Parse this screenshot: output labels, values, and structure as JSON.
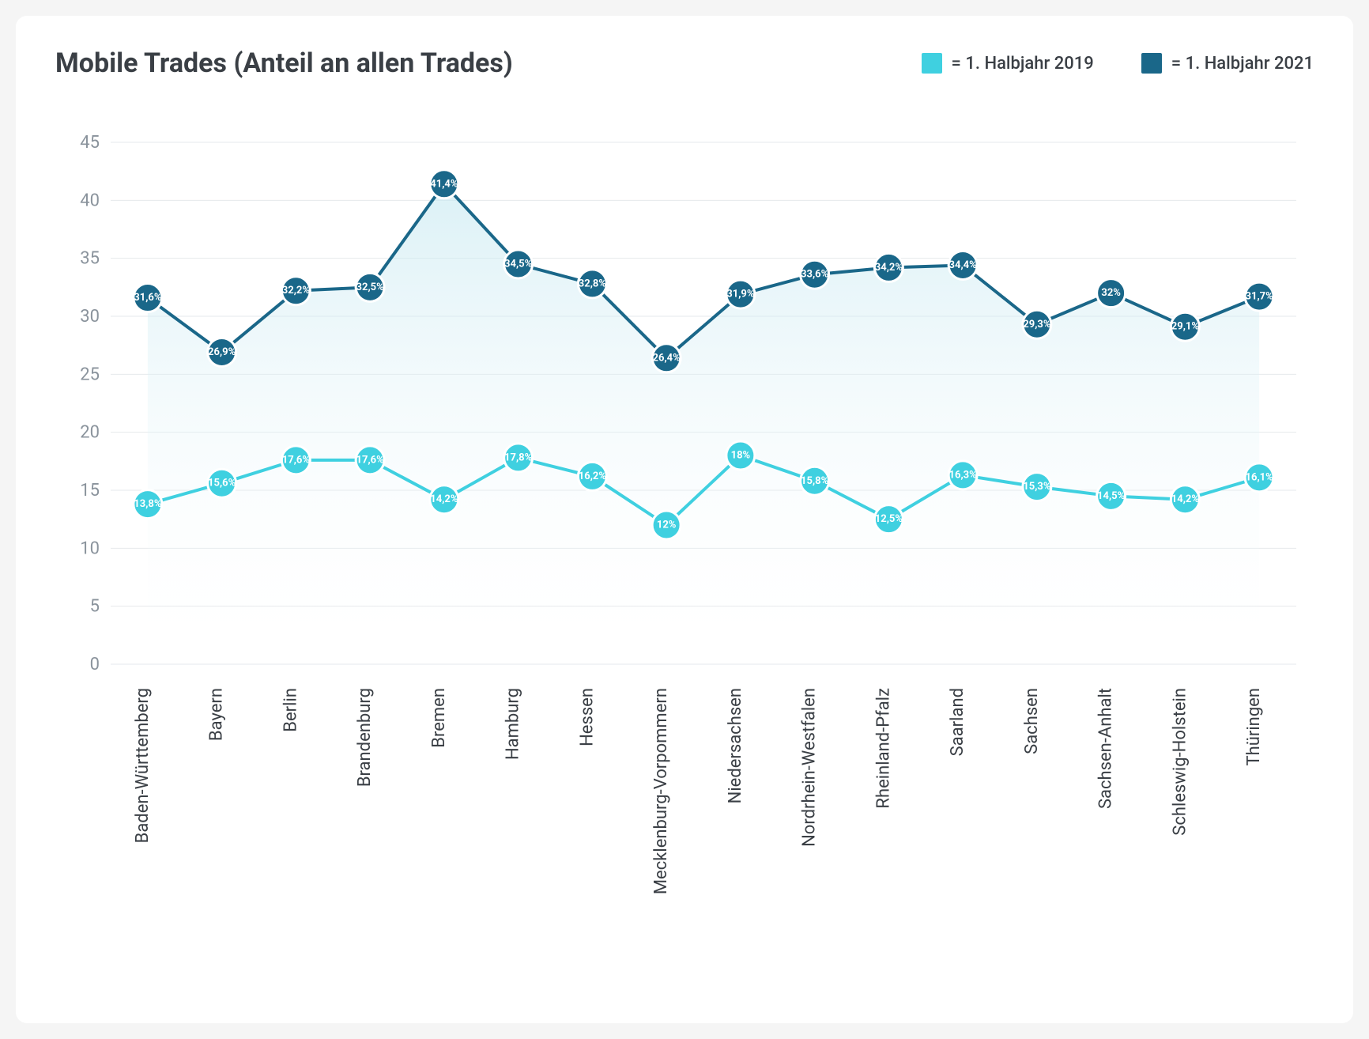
{
  "title": "Mobile Trades (Anteil an allen Trades)",
  "legend": [
    {
      "color": "#3fd0e0",
      "label": "= 1. Halbjahr 2019"
    },
    {
      "color": "#1a6789",
      "label": "= 1. Halbjahr 2021"
    }
  ],
  "chart": {
    "type": "line",
    "background_color": "#ffffff",
    "grid_color": "#e6e9ec",
    "ylim": [
      0,
      45
    ],
    "yticks": [
      0,
      5,
      10,
      15,
      20,
      25,
      30,
      35,
      40,
      45
    ],
    "ytick_color": "#8a939c",
    "ytick_fontsize": 22,
    "xtick_color": "#3a3f45",
    "xtick_fontsize": 22,
    "line_width": 4,
    "marker_radius": 18,
    "marker_stroke": "#ffffff",
    "marker_stroke_width": 3,
    "label_fontsize": 13,
    "label_color": "#ffffff",
    "area_fill_top": "#c3e7f0",
    "area_fill_bottom": "#ffffff",
    "area_opacity": 0.6,
    "categories": [
      "Baden-Württemberg",
      "Bayern",
      "Berlin",
      "Brandenburg",
      "Bremen",
      "Hamburg",
      "Hessen",
      "Mecklenburg-Vorpommern",
      "Niedersachsen",
      "Nordrhein-Westfalen",
      "Rheinland-Pfalz",
      "Saarland",
      "Sachsen",
      "Sachsen-Anhalt",
      "Schleswig-Holstein",
      "Thüringen"
    ],
    "series": [
      {
        "name": "1. Halbjahr 2021",
        "color": "#1a6789",
        "has_area": true,
        "values": [
          31.6,
          26.9,
          32.2,
          32.5,
          41.4,
          34.5,
          32.8,
          26.4,
          31.9,
          33.6,
          34.2,
          34.4,
          29.3,
          32.0,
          29.1,
          31.7
        ],
        "labels": [
          "31,6%",
          "26,9%",
          "32,2%",
          "32,5%",
          "41,4%",
          "34,5%",
          "32,8%",
          "26,4%",
          "31,9%",
          "33,6%",
          "34,2%",
          "34,4%",
          "29,3%",
          "32%",
          "29,1%",
          "31,7%"
        ]
      },
      {
        "name": "1. Halbjahr 2019",
        "color": "#3fd0e0",
        "has_area": false,
        "values": [
          13.8,
          15.6,
          17.6,
          17.6,
          14.2,
          17.8,
          16.2,
          12.0,
          18.0,
          15.8,
          12.5,
          16.3,
          15.3,
          14.5,
          14.2,
          16.1
        ],
        "labels": [
          "13,8%",
          "15,6%",
          "17,6%",
          "17,6%",
          "14,2%",
          "17,8%",
          "16,2%",
          "12%",
          "18%",
          "15,8%",
          "12,5%",
          "16,3%",
          "15,3%",
          "14,5%",
          "14,2%",
          "16,1%"
        ]
      }
    ]
  }
}
